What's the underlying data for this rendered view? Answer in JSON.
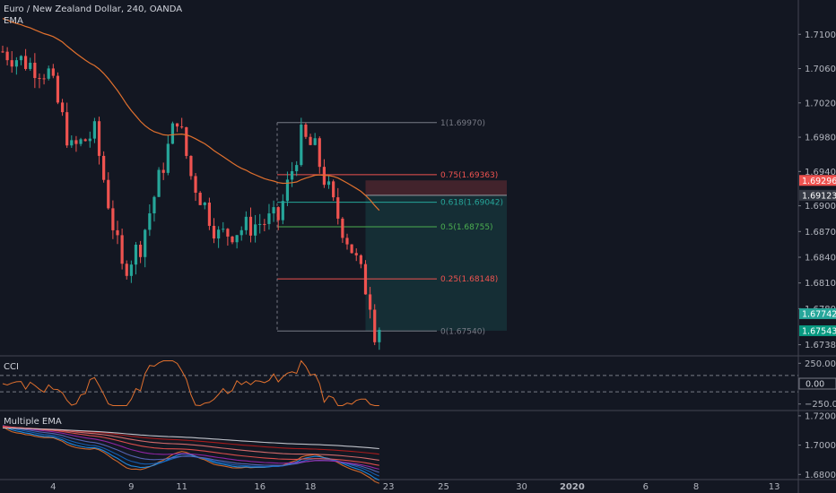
{
  "header": {
    "symbol_title": "Euro / New Zealand Dollar, 240, OANDA",
    "ema_label": "EMA",
    "cci_label": "CCI",
    "multi_ema_label": "Multiple EMA"
  },
  "colors": {
    "background": "#131722",
    "up": "#26a69a",
    "down": "#ef5350",
    "ema": "#e0702e",
    "grid": "#2a2e39",
    "text": "#b2b5be",
    "cci": "#e0702e"
  },
  "chart_data": [
    {
      "type": "candlestick",
      "title": "Euro / New Zealand Dollar, 240, OANDA",
      "xlabel": "",
      "ylabel": "",
      "ylim": [
        1.6725,
        1.714
      ],
      "y_ticks": [
        "1.71000",
        "1.70600",
        "1.70200",
        "1.69800",
        "1.69400",
        "1.69000",
        "1.68700",
        "1.68400",
        "1.68100",
        "1.67800",
        "1.67380"
      ],
      "y_tick_values": [
        1.71,
        1.706,
        1.702,
        1.698,
        1.694,
        1.69,
        1.687,
        1.684,
        1.681,
        1.678,
        1.6738
      ],
      "x_tick_labels": [
        "4",
        "9",
        "11",
        "16",
        "18",
        "23",
        "25",
        "30",
        "2020",
        "6",
        "8",
        "13"
      ],
      "x_tick_bars": [
        11,
        28,
        39,
        56,
        67,
        84,
        96,
        113,
        124,
        140,
        151,
        168
      ],
      "anchor": {
        "open": 1.708,
        "trend": [
          [
            0,
            1.708
          ],
          [
            10,
            1.7055
          ],
          [
            15,
            1.6965
          ],
          [
            20,
            1.6985
          ],
          [
            26,
            1.6825
          ],
          [
            30,
            1.6855
          ],
          [
            38,
            1.7005
          ],
          [
            41,
            1.6935
          ],
          [
            47,
            1.6865
          ],
          [
            56,
            1.688
          ],
          [
            60,
            1.6885
          ],
          [
            65,
            1.698
          ],
          [
            68,
            1.6965
          ],
          [
            72,
            1.69
          ],
          [
            76,
            1.685
          ],
          [
            80,
            1.679
          ],
          [
            81,
            1.6755
          ],
          [
            82,
            1.676
          ]
        ]
      },
      "ema_series": {
        "name": "EMA",
        "values_from": "computed 50-period EMA of closes"
      },
      "fibonacci": [
        {
          "level": "1",
          "price": 1.6997,
          "label": "1(1.69970)"
        },
        {
          "level": "0.75",
          "price": 1.69363,
          "label": "0.75(1.69363)"
        },
        {
          "level": "0.618",
          "price": 1.69042,
          "label": "0.618(1.69042)"
        },
        {
          "level": "0.5",
          "price": 1.68755,
          "label": "0.5(1.68755)"
        },
        {
          "level": "0.25",
          "price": 1.68148,
          "label": "0.25(1.68148)"
        },
        {
          "level": "0",
          "price": 1.6754,
          "label": "0(1.67540)"
        }
      ],
      "position_tool": {
        "entry": 1.69123,
        "stop": 1.69296,
        "target": 1.67543
      },
      "price_tags": [
        {
          "label": "1.69296",
          "price": 1.69296,
          "color": "#ef5350"
        },
        {
          "label": "1.69123",
          "price": 1.69123,
          "color": "#363a45"
        },
        {
          "label": "1.67742",
          "price": 1.67742,
          "color": "#26a69a"
        },
        {
          "label": "1.67543",
          "price": 1.67543,
          "color": "#089981"
        }
      ],
      "grid": false
    },
    {
      "type": "line",
      "title": "CCI",
      "ylim": [
        -330,
        330
      ],
      "y_ticks": [
        "250.00",
        "−250.00"
      ],
      "y_tick_values": [
        250,
        -250
      ],
      "guide_lines": [
        100,
        -100
      ],
      "current_tag": "0.00"
    },
    {
      "type": "line",
      "title": "Multiple EMA",
      "ylim": [
        1.6765,
        1.723
      ],
      "y_ticks": [
        "1.72000",
        "1.70000",
        "1.68000"
      ],
      "y_tick_values": [
        1.72,
        1.7,
        1.68
      ]
    }
  ]
}
